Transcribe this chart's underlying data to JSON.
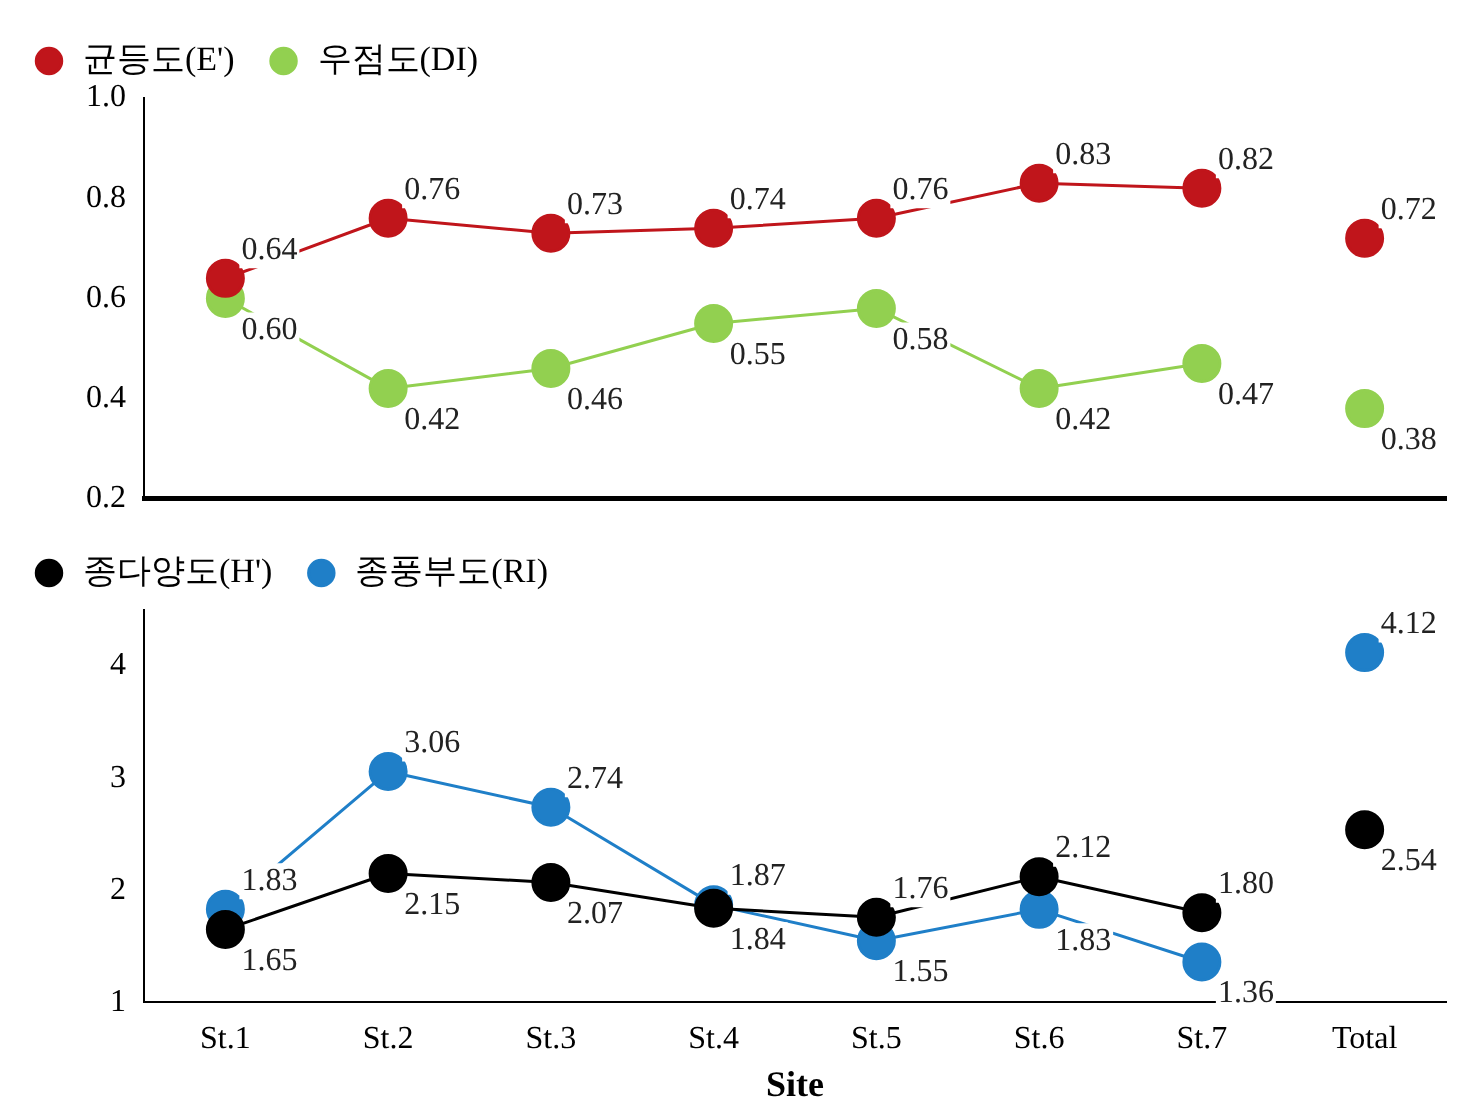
{
  "chart_data": [
    {
      "type": "line",
      "categories": [
        "St.1",
        "St.2",
        "St.3",
        "St.4",
        "St.5",
        "St.6",
        "St.7",
        "Total"
      ],
      "ylim": [
        0.2,
        1.0
      ],
      "yticks": [
        {
          "value": 0.2,
          "label": "0.2"
        },
        {
          "value": 0.4,
          "label": "0.4"
        },
        {
          "value": 0.6,
          "label": "0.6"
        },
        {
          "value": 0.8,
          "label": "0.8"
        },
        {
          "value": 1.0,
          "label": "1.0"
        }
      ],
      "tick_labels": "y",
      "legend": "top left",
      "marker": "circle",
      "series": [
        {
          "name": "균등도(E')",
          "color": "#c0151b",
          "values": [
            0.64,
            0.76,
            0.73,
            0.74,
            0.76,
            0.83,
            0.82,
            null
          ],
          "value_labels": [
            "0.64",
            "0.76",
            "0.73",
            "0.74",
            "0.76",
            "0.83",
            "0.82",
            null
          ]
        },
        {
          "name": "우점도(DI)",
          "color": "#92d050",
          "values": [
            0.6,
            0.42,
            0.46,
            0.55,
            0.58,
            0.42,
            0.47,
            null
          ],
          "value_labels": [
            "0.60",
            "0.42",
            "0.46",
            "0.55",
            "0.58",
            "0.42",
            "0.47",
            null
          ]
        },
        {
          "type": "scatter",
          "color": "#c0151b",
          "x": [
            "Total"
          ],
          "values": [
            0.72
          ],
          "value_labels": [
            "0.72"
          ]
        },
        {
          "type": "scatter",
          "color": "#92d050",
          "x": [
            "Total"
          ],
          "values": [
            0.38
          ],
          "value_labels": [
            "0.38"
          ]
        }
      ]
    },
    {
      "type": "line",
      "categories": [
        "St.1",
        "St.2",
        "St.3",
        "St.4",
        "St.5",
        "St.6",
        "St.7",
        "Total"
      ],
      "xlabel": "Site",
      "ylim": [
        1,
        4.5
      ],
      "yticks": [
        1,
        2,
        3,
        4
      ],
      "legend": "top left",
      "marker": "circle",
      "series": [
        {
          "name": "종다양도(H')",
          "color": "#000000",
          "values": [
            1.65,
            2.15,
            2.07,
            1.84,
            1.76,
            2.12,
            1.8,
            null
          ],
          "value_labels": [
            "1.65",
            "2.15",
            "2.07",
            "1.84",
            "1.76",
            "2.12",
            "1.80",
            null
          ]
        },
        {
          "name": "종풍부도(RI)",
          "color": "#1f7fc8",
          "values": [
            1.83,
            3.06,
            2.74,
            1.87,
            1.55,
            1.83,
            1.36,
            null
          ],
          "value_labels": [
            "1.83",
            "3.06",
            "2.74",
            "1.87",
            "1.55",
            "1.83",
            "1.36",
            null
          ]
        },
        {
          "type": "scatter",
          "color": "#000000",
          "x": [
            "Total"
          ],
          "values": [
            2.54
          ],
          "value_labels": [
            "2.54"
          ]
        },
        {
          "type": "scatter",
          "color": "#1f7fc8",
          "x": [
            "Total"
          ],
          "values": [
            4.12
          ],
          "value_labels": [
            "4.12"
          ]
        }
      ]
    }
  ]
}
